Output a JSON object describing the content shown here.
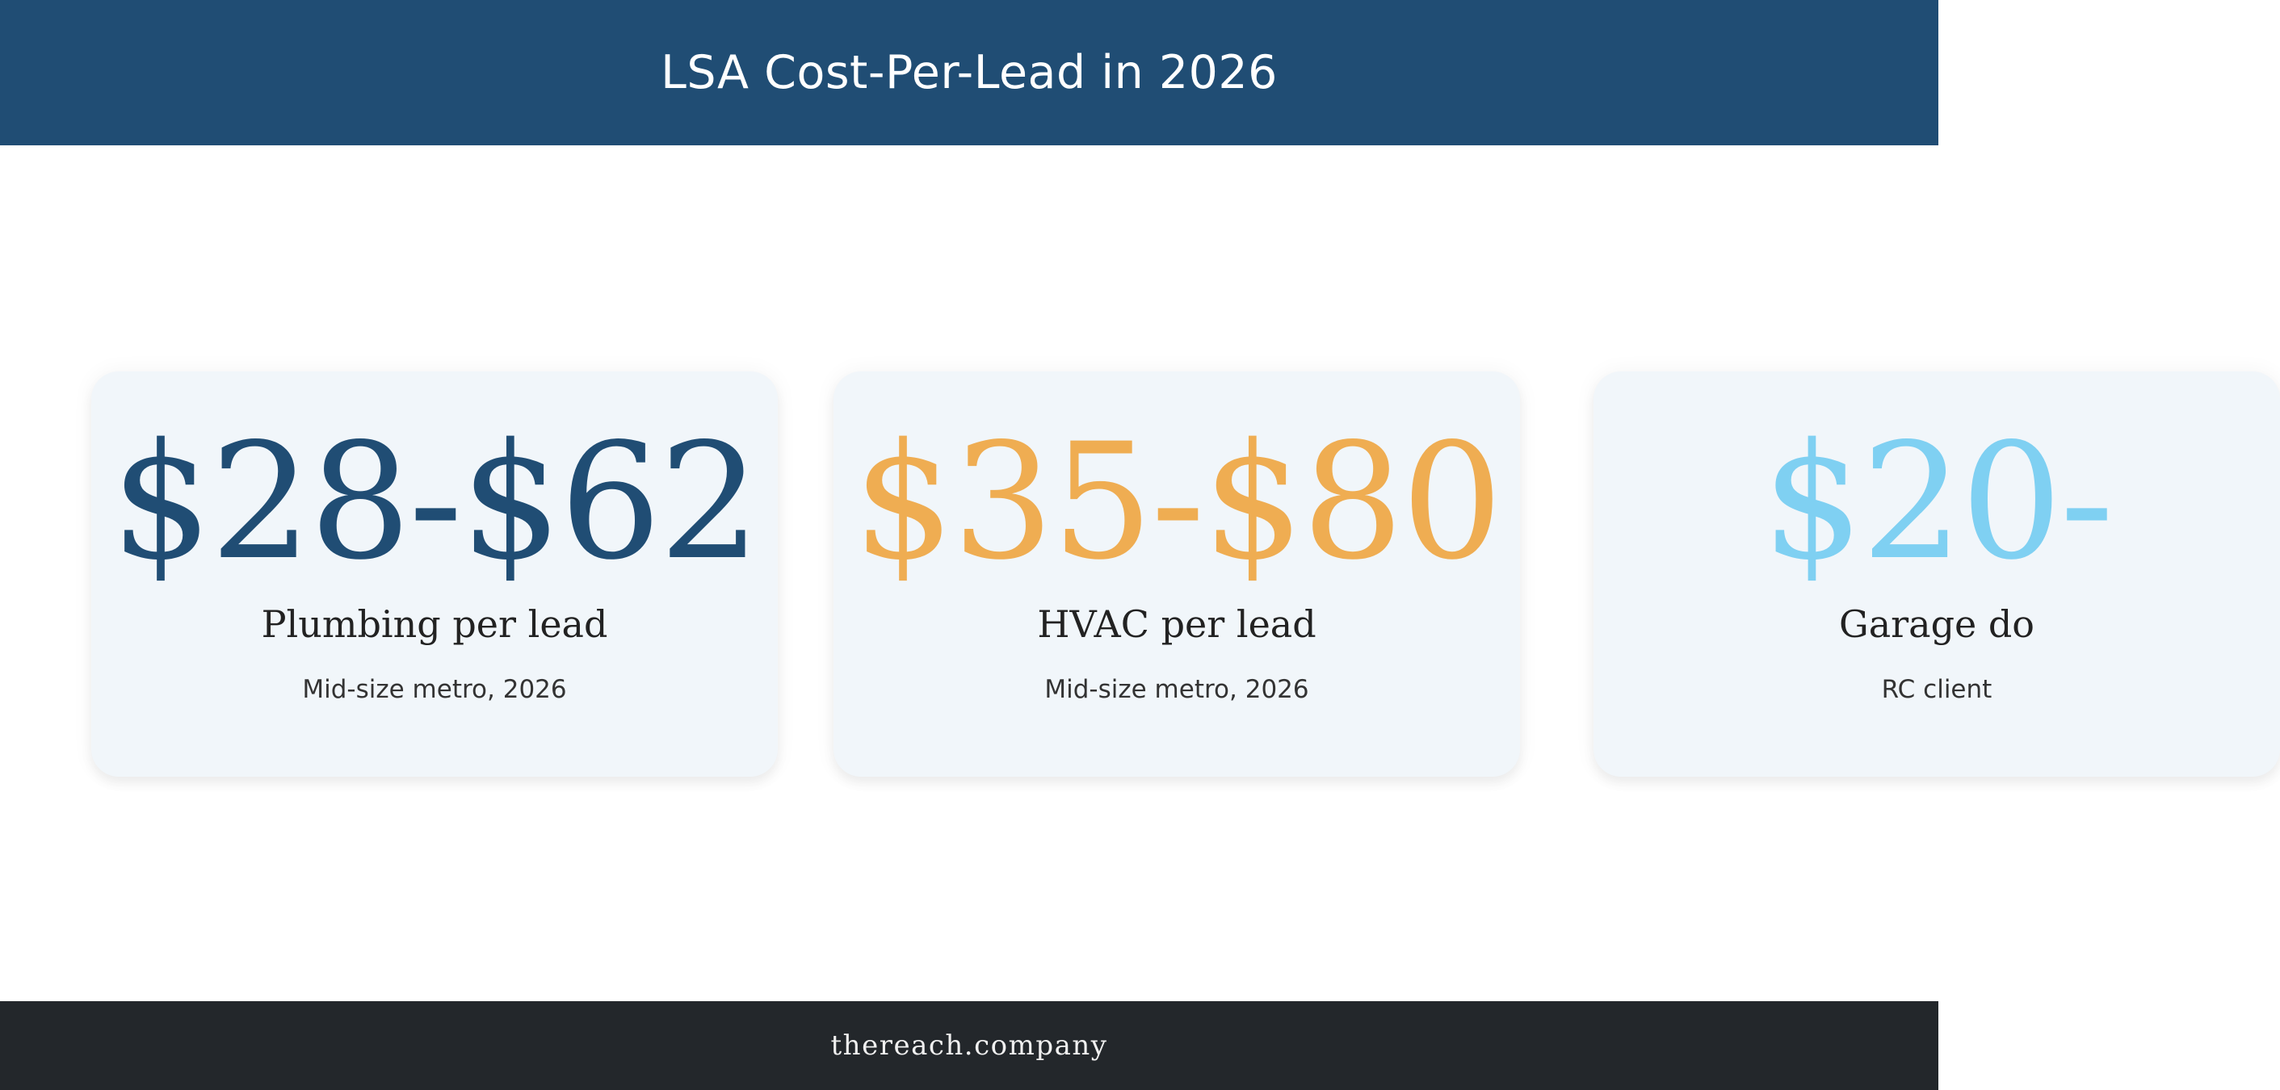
{
  "header": {
    "title": "LSA Cost-Per-Lead in 2026"
  },
  "cards": [
    {
      "value": "$28-$62",
      "label": "Plumbing per lead",
      "sublabel": "Mid-size metro, 2026"
    },
    {
      "value": "$35-$80",
      "label": "HVAC per lead",
      "sublabel": "Mid-size metro, 2026"
    },
    {
      "value": "$20-",
      "label": "Garage do",
      "sublabel": "RC client"
    }
  ],
  "footer": {
    "text": "thereach.company"
  },
  "colors": {
    "header_bg": "#204d74",
    "footer_bg": "#23272b",
    "card_bg": "#f1f6fa",
    "navy": "#204d74",
    "orange": "#efad52",
    "light_blue": "#7fd0f2"
  }
}
